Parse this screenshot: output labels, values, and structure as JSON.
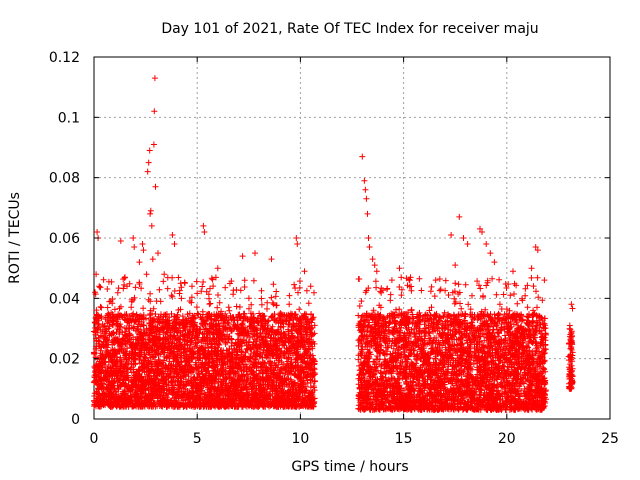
{
  "chart_data": {
    "type": "scatter",
    "title": "Day 101 of 2021, Rate Of TEC Index for receiver maju",
    "xlabel": "GPS time / hours",
    "ylabel": "ROTI / TECUs",
    "xlim": [
      0,
      25
    ],
    "ylim": [
      0,
      0.12
    ],
    "xticks": [
      0,
      5,
      10,
      15,
      20,
      25
    ],
    "xtick_labels": [
      "0",
      "5",
      "10",
      "15",
      "20",
      "25"
    ],
    "yticks": [
      0,
      0.02,
      0.04,
      0.06,
      0.08,
      0.1,
      0.12
    ],
    "ytick_labels": [
      "0",
      "0.02",
      "0.04",
      "0.06",
      "0.08",
      "0.1",
      "0.12"
    ],
    "grid": true,
    "marker": "+",
    "color": "#ff0000",
    "segments": [
      {
        "start": 0.0,
        "end": 10.7,
        "typical_range": [
          0.004,
          0.035
        ]
      },
      {
        "start": 12.8,
        "end": 21.9,
        "typical_range": [
          0.003,
          0.035
        ]
      },
      {
        "start": 23.0,
        "end": 23.2,
        "typical_range": [
          0.01,
          0.03
        ]
      }
    ],
    "series": [
      {
        "name": "ROTI",
        "points": [
          [
            0.05,
            0.042
          ],
          [
            0.1,
            0.048
          ],
          [
            0.15,
            0.062
          ],
          [
            0.2,
            0.06
          ],
          [
            0.25,
            0.044
          ],
          [
            1.3,
            0.059
          ],
          [
            1.5,
            0.047
          ],
          [
            1.6,
            0.044
          ],
          [
            1.9,
            0.06
          ],
          [
            1.95,
            0.057
          ],
          [
            2.2,
            0.052
          ],
          [
            2.35,
            0.058
          ],
          [
            2.4,
            0.056
          ],
          [
            2.55,
            0.048
          ],
          [
            2.6,
            0.082
          ],
          [
            2.65,
            0.085
          ],
          [
            2.7,
            0.089
          ],
          [
            2.72,
            0.068
          ],
          [
            2.75,
            0.069
          ],
          [
            2.8,
            0.064
          ],
          [
            2.85,
            0.053
          ],
          [
            2.9,
            0.091
          ],
          [
            2.92,
            0.102
          ],
          [
            2.95,
            0.113
          ],
          [
            2.98,
            0.077
          ],
          [
            3.1,
            0.055
          ],
          [
            3.4,
            0.048
          ],
          [
            3.8,
            0.061
          ],
          [
            3.9,
            0.058
          ],
          [
            4.2,
            0.045
          ],
          [
            5.3,
            0.064
          ],
          [
            5.35,
            0.062
          ],
          [
            6.0,
            0.05
          ],
          [
            7.2,
            0.054
          ],
          [
            7.8,
            0.055
          ],
          [
            8.6,
            0.053
          ],
          [
            9.8,
            0.06
          ],
          [
            9.85,
            0.058
          ],
          [
            10.2,
            0.049
          ],
          [
            10.5,
            0.044
          ],
          [
            13.0,
            0.087
          ],
          [
            13.1,
            0.079
          ],
          [
            13.15,
            0.076
          ],
          [
            13.2,
            0.073
          ],
          [
            13.25,
            0.068
          ],
          [
            13.3,
            0.06
          ],
          [
            13.35,
            0.057
          ],
          [
            13.5,
            0.053
          ],
          [
            13.6,
            0.051
          ],
          [
            13.7,
            0.049
          ],
          [
            14.8,
            0.05
          ],
          [
            15.3,
            0.046
          ],
          [
            16.8,
            0.043
          ],
          [
            17.3,
            0.061
          ],
          [
            17.5,
            0.051
          ],
          [
            17.7,
            0.067
          ],
          [
            17.9,
            0.06
          ],
          [
            18.1,
            0.058
          ],
          [
            18.7,
            0.063
          ],
          [
            18.8,
            0.062
          ],
          [
            19.0,
            0.058
          ],
          [
            19.2,
            0.055
          ],
          [
            19.4,
            0.052
          ],
          [
            20.3,
            0.049
          ],
          [
            21.2,
            0.05
          ],
          [
            21.4,
            0.057
          ],
          [
            21.5,
            0.056
          ],
          [
            23.05,
            0.031
          ],
          [
            23.1,
            0.021
          ],
          [
            23.15,
            0.016
          ],
          [
            23.18,
            0.012
          ]
        ]
      }
    ]
  }
}
